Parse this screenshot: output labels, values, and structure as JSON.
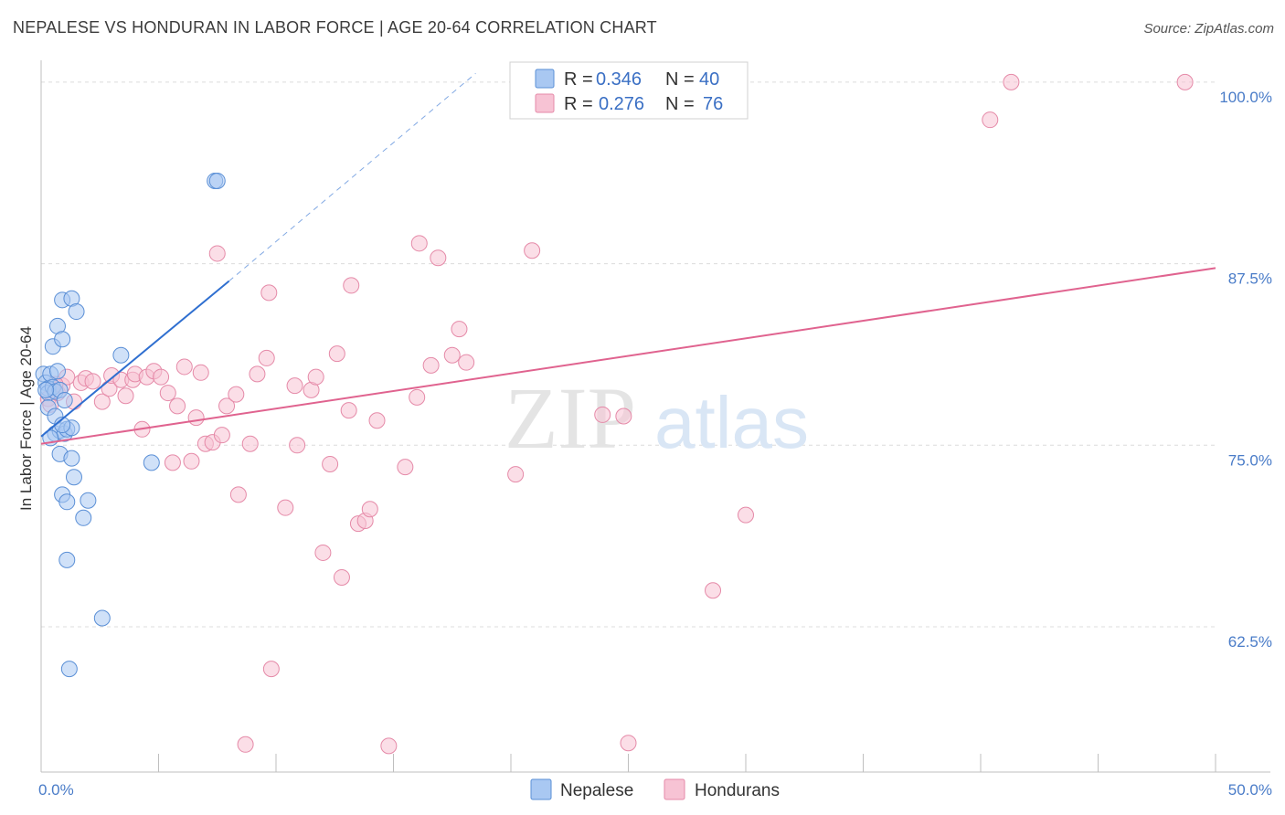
{
  "title": "NEPALESE VS HONDURAN IN LABOR FORCE | AGE 20-64 CORRELATION CHART",
  "source": "Source: ZipAtlas.com",
  "colors": {
    "nepalese_fill": "#a9c8f2",
    "nepalese_stroke": "#5a8fd6",
    "nepalese_line": "#2f6fd0",
    "hondurans_fill": "#f7c3d4",
    "hondurans_stroke": "#e58aa8",
    "hondurans_line": "#e0638f",
    "tick_label": "#4a7cc8",
    "grid": "#dcdcdc"
  },
  "legend": {
    "r_label": "R =",
    "n_label": "N =",
    "rows": [
      {
        "series": "Nepalese",
        "r": "0.346",
        "n": "40"
      },
      {
        "series": "Hondurans",
        "r": "0.276",
        "n": "76"
      }
    ]
  },
  "watermark": {
    "zip": "ZIP",
    "atlas": "atlas"
  },
  "chart_data": {
    "type": "scatter",
    "title": "NEPALESE VS HONDURAN IN LABOR FORCE | AGE 20-64 CORRELATION CHART",
    "xlabel": "",
    "ylabel": "In Labor Force | Age 20-64",
    "x_unit": "%",
    "y_unit": "%",
    "xlim": [
      0,
      50
    ],
    "ylim": [
      52.5,
      101.5
    ],
    "x_tick_labels": [
      {
        "value": 0,
        "label": "0.0%"
      },
      {
        "value": 50,
        "label": "50.0%"
      }
    ],
    "y_tick_labels": [
      {
        "value": 100,
        "label": "100.0%"
      },
      {
        "value": 87.5,
        "label": "87.5%"
      },
      {
        "value": 75,
        "label": "75.0%"
      },
      {
        "value": 62.5,
        "label": "62.5%"
      }
    ],
    "grid": "horizontal dashed",
    "legend_position": "top-center",
    "series": [
      {
        "name": "Nepalese",
        "points": [
          [
            0.1,
            79.9
          ],
          [
            0.2,
            79.3
          ],
          [
            0.3,
            78.9
          ],
          [
            0.3,
            78.6
          ],
          [
            0.3,
            77.6
          ],
          [
            0.4,
            79.9
          ],
          [
            0.5,
            81.8
          ],
          [
            0.5,
            79.0
          ],
          [
            0.6,
            78.7
          ],
          [
            0.6,
            77.0
          ],
          [
            0.6,
            75.8
          ],
          [
            0.7,
            80.1
          ],
          [
            0.7,
            83.2
          ],
          [
            0.8,
            74.4
          ],
          [
            0.8,
            76.0
          ],
          [
            0.8,
            78.8
          ],
          [
            0.9,
            71.6
          ],
          [
            0.9,
            85.0
          ],
          [
            0.9,
            82.3
          ],
          [
            1.0,
            78.1
          ],
          [
            1.0,
            75.8
          ],
          [
            1.1,
            76.1
          ],
          [
            1.1,
            71.1
          ],
          [
            1.1,
            67.1
          ],
          [
            1.2,
            59.6
          ],
          [
            1.3,
            85.1
          ],
          [
            1.3,
            74.1
          ],
          [
            1.3,
            76.2
          ],
          [
            1.4,
            72.8
          ],
          [
            1.5,
            84.2
          ],
          [
            1.8,
            70.0
          ],
          [
            2.0,
            71.2
          ],
          [
            2.6,
            63.1
          ],
          [
            3.4,
            81.2
          ],
          [
            4.7,
            73.8
          ],
          [
            7.4,
            93.2
          ],
          [
            7.5,
            93.2
          ],
          [
            0.4,
            75.5
          ],
          [
            0.9,
            76.4
          ],
          [
            0.2,
            78.8
          ]
        ]
      },
      {
        "name": "Hondurans",
        "points": [
          [
            0.3,
            78.2
          ],
          [
            0.4,
            77.8
          ],
          [
            0.5,
            79.0
          ],
          [
            0.7,
            78.6
          ],
          [
            0.9,
            79.1
          ],
          [
            1.1,
            79.7
          ],
          [
            1.4,
            78.0
          ],
          [
            1.7,
            79.3
          ],
          [
            1.9,
            79.6
          ],
          [
            2.2,
            79.4
          ],
          [
            2.6,
            78.0
          ],
          [
            2.9,
            78.9
          ],
          [
            3.0,
            79.8
          ],
          [
            3.4,
            79.5
          ],
          [
            3.6,
            78.4
          ],
          [
            3.9,
            79.5
          ],
          [
            4.0,
            79.9
          ],
          [
            4.3,
            76.1
          ],
          [
            4.5,
            79.7
          ],
          [
            4.8,
            80.1
          ],
          [
            5.1,
            79.7
          ],
          [
            5.4,
            78.6
          ],
          [
            5.6,
            73.8
          ],
          [
            5.8,
            77.7
          ],
          [
            6.1,
            80.4
          ],
          [
            6.4,
            73.9
          ],
          [
            6.6,
            76.9
          ],
          [
            6.8,
            80.0
          ],
          [
            7.0,
            75.1
          ],
          [
            7.3,
            75.2
          ],
          [
            7.5,
            88.2
          ],
          [
            7.7,
            75.7
          ],
          [
            7.9,
            77.7
          ],
          [
            8.3,
            78.5
          ],
          [
            8.4,
            71.6
          ],
          [
            8.7,
            54.4
          ],
          [
            8.9,
            75.1
          ],
          [
            9.2,
            79.9
          ],
          [
            9.6,
            81.0
          ],
          [
            9.7,
            85.5
          ],
          [
            9.8,
            59.6
          ],
          [
            10.4,
            70.7
          ],
          [
            10.8,
            79.1
          ],
          [
            10.9,
            75.0
          ],
          [
            11.5,
            78.8
          ],
          [
            11.7,
            79.7
          ],
          [
            12.0,
            67.6
          ],
          [
            12.3,
            73.7
          ],
          [
            12.6,
            81.3
          ],
          [
            12.8,
            65.9
          ],
          [
            13.1,
            77.4
          ],
          [
            13.2,
            86.0
          ],
          [
            13.5,
            69.6
          ],
          [
            13.8,
            69.8
          ],
          [
            14.0,
            70.6
          ],
          [
            14.3,
            76.7
          ],
          [
            14.8,
            54.3
          ],
          [
            15.5,
            73.5
          ],
          [
            16.0,
            78.3
          ],
          [
            16.1,
            88.9
          ],
          [
            16.6,
            80.5
          ],
          [
            16.9,
            87.9
          ],
          [
            17.5,
            81.2
          ],
          [
            17.8,
            83.0
          ],
          [
            18.1,
            80.7
          ],
          [
            20.2,
            73.0
          ],
          [
            20.9,
            88.4
          ],
          [
            23.9,
            77.1
          ],
          [
            24.8,
            77.0
          ],
          [
            25.0,
            54.5
          ],
          [
            28.6,
            65.0
          ],
          [
            30.0,
            70.2
          ],
          [
            40.4,
            97.4
          ],
          [
            41.3,
            100.0
          ],
          [
            48.7,
            100.0
          ],
          [
            0.6,
            79.2
          ]
        ]
      }
    ],
    "trend_lines": [
      {
        "series": "Nepalese",
        "x": [
          0.0,
          8.0
        ],
        "y": [
          75.6,
          86.3
        ],
        "extension_to": [
          18.5,
          100.6
        ]
      },
      {
        "series": "Hondurans",
        "x": [
          0.0,
          50.0
        ],
        "y": [
          75.1,
          87.2
        ]
      }
    ]
  }
}
